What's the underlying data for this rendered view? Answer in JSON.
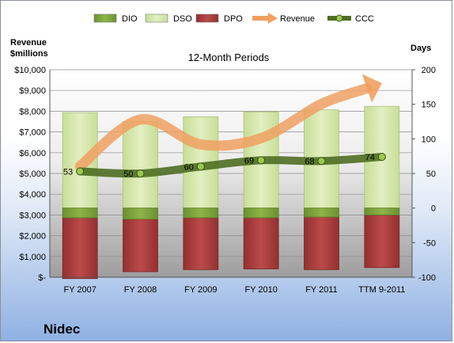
{
  "chart_data": {
    "type": "bar",
    "title": "12-Month Periods",
    "company": "Nidec",
    "left_axis_title": [
      "Revenue",
      "$millions"
    ],
    "right_axis_title": "Days",
    "categories": [
      "FY 2007",
      "FY 2008",
      "FY 2009",
      "FY 2010",
      "FY 2011",
      "TTM 9-2011"
    ],
    "left_axis": {
      "ylim": [
        0,
        10000
      ],
      "ticks": [
        0,
        1000,
        2000,
        3000,
        4000,
        5000,
        6000,
        7000,
        8000,
        9000,
        10000
      ],
      "tick_labels": [
        "$-",
        "$1,000",
        "$2,000",
        "$3,000",
        "$4,000",
        "$5,000",
        "$6,000",
        "$7,000",
        "$8,000",
        "$9,000",
        "$10,000"
      ]
    },
    "right_axis": {
      "ylim": [
        -100,
        200
      ],
      "ticks": [
        -100,
        -50,
        0,
        50,
        100,
        150,
        200
      ],
      "tick_labels": [
        "-100",
        "-50",
        "0",
        "50",
        "100",
        "150",
        "200"
      ]
    },
    "legend_position": "top",
    "legend": [
      {
        "key": "dio",
        "name": "DIO",
        "kind": "bar",
        "color": "#7fa63a"
      },
      {
        "key": "dso",
        "name": "DSO",
        "kind": "bar",
        "color": "#d3e6a8"
      },
      {
        "key": "dpo",
        "name": "DPO",
        "kind": "bar",
        "color": "#a83a3a"
      },
      {
        "key": "revenue",
        "name": "Revenue",
        "kind": "arrow",
        "color": "#f0a060"
      },
      {
        "key": "ccc",
        "name": "CCC",
        "kind": "line",
        "color": "#4e6e22"
      }
    ],
    "series": [
      {
        "name": "DIO",
        "axis": "right",
        "values": [
          -14,
          -16,
          -14,
          -14,
          -13,
          -10
        ]
      },
      {
        "name": "DSO",
        "axis": "right",
        "values": [
          138,
          125,
          132,
          139,
          142,
          147
        ]
      },
      {
        "name": "DPO",
        "axis": "right",
        "values": [
          -88,
          -76,
          -75,
          -74,
          -76,
          -76
        ]
      },
      {
        "name": "Revenue",
        "axis": "left",
        "values": [
          5350,
          7600,
          6400,
          6700,
          8350,
          9350
        ]
      },
      {
        "name": "CCC",
        "axis": "right",
        "values": [
          53,
          50,
          60,
          69,
          68,
          74
        ],
        "data_labels": [
          "53",
          "50",
          "60",
          "69",
          "68",
          "74"
        ]
      }
    ],
    "colors": {
      "dio": "#7fa63a",
      "dso": "#d3e6a8",
      "dpo": "#a83a3a",
      "revenue": "#f0a060",
      "ccc": "#4e6e22",
      "plot_bg_top": "#ffffff",
      "plot_bg_bottom": "#a9a9a9"
    }
  }
}
